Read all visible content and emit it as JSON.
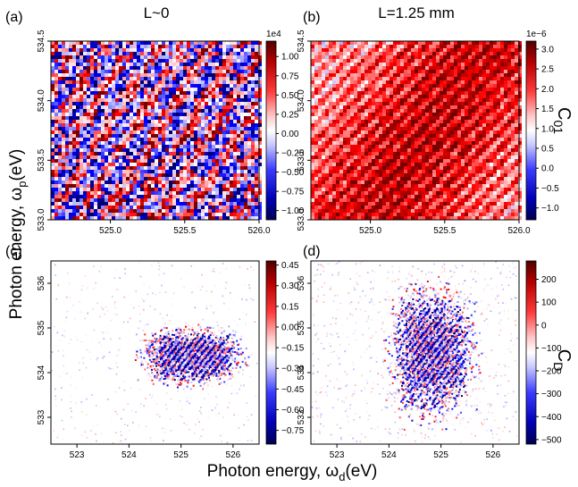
{
  "figure": {
    "ylabel": "Photon energy,  ω",
    "ylabel_sub": "p",
    "ylabel_unit": "(eV)",
    "xlabel": "Photon energy,  ω",
    "xlabel_sub": "d",
    "xlabel_unit": "(eV)",
    "colorbar_top_label": "C",
    "colorbar_top_sub": "01",
    "colorbar_bottom_label": "C",
    "colorbar_bottom_sub": "D"
  },
  "chart_data": [
    {
      "panel": "(a)",
      "title": "L~0",
      "type": "heatmap",
      "pattern": "speckle-noise",
      "xlim": [
        524.6,
        526.0
      ],
      "ylim": [
        533.0,
        534.5
      ],
      "xticks": [
        "525.0",
        "525.5",
        "526.0"
      ],
      "xtick_values": [
        525.0,
        525.5,
        526.0
      ],
      "yticks": [
        "533.0",
        "533.5",
        "534.0",
        "534.5"
      ],
      "ytick_values": [
        533.0,
        533.5,
        534.0,
        534.5
      ],
      "colorbar": {
        "exponent": "1e4",
        "ticks": [
          "1.00",
          "0.75",
          "0.50",
          "0.25",
          "0.00",
          "−0.25",
          "−0.50",
          "−0.75",
          "−1.00"
        ],
        "tick_values": [
          1.0,
          0.75,
          0.5,
          0.25,
          0.0,
          -0.25,
          -0.5,
          -0.75,
          -1.0
        ],
        "range": [
          -1.12,
          1.2
        ],
        "cmap": "seismic"
      }
    },
    {
      "panel": "(b)",
      "title": "L=1.25 mm",
      "type": "heatmap",
      "pattern": "positive-diagonal-fringes",
      "xlim": [
        524.6,
        526.0
      ],
      "ylim": [
        533.0,
        534.5
      ],
      "xticks": [
        "525.0",
        "525.5",
        "526.0"
      ],
      "xtick_values": [
        525.0,
        525.5,
        526.0
      ],
      "yticks": [
        "533.0",
        "533.5",
        "534.0",
        "534.5"
      ],
      "ytick_values": [
        533.0,
        533.5,
        534.0,
        534.5
      ],
      "colorbar": {
        "exponent": "1e−6",
        "ticks": [
          "3.0",
          "2.5",
          "2.0",
          "1.5",
          "1.0",
          "0.5",
          "0.0",
          "−0.5",
          "−1.0"
        ],
        "tick_values": [
          3.0,
          2.5,
          2.0,
          1.5,
          1.0,
          0.5,
          0.0,
          -0.5,
          -1.0
        ],
        "range": [
          -1.3,
          3.2
        ],
        "cmap": "seismic"
      }
    },
    {
      "panel": "(c)",
      "title": "",
      "type": "heatmap",
      "pattern": "sparse-elliptical-blob",
      "xlim": [
        522.5,
        526.5
      ],
      "ylim": [
        532.4,
        536.5
      ],
      "xticks": [
        "523",
        "524",
        "525",
        "526"
      ],
      "xtick_values": [
        523,
        524,
        525,
        526
      ],
      "yticks": [
        "533",
        "534",
        "535",
        "536"
      ],
      "ytick_values": [
        533,
        534,
        535,
        536
      ],
      "colorbar": {
        "exponent": "",
        "ticks": [
          "0.45",
          "0.30",
          "0.15",
          "0.00",
          "−0.15",
          "−0.30",
          "−0.45",
          "−0.60",
          "−0.75"
        ],
        "tick_values": [
          0.45,
          0.3,
          0.15,
          0.0,
          -0.15,
          -0.3,
          -0.45,
          -0.6,
          -0.75
        ],
        "range": [
          -0.85,
          0.48
        ],
        "cmap": "seismic"
      }
    },
    {
      "panel": "(d)",
      "title": "",
      "type": "heatmap",
      "pattern": "sparse-elongated-blob",
      "xlim": [
        522.5,
        526.5
      ],
      "ylim": [
        532.4,
        536.5
      ],
      "xticks": [
        "523",
        "524",
        "525",
        "526"
      ],
      "xtick_values": [
        523,
        524,
        525,
        526
      ],
      "yticks": [
        "533",
        "534",
        "535",
        "536"
      ],
      "ytick_values": [
        533,
        534,
        535,
        536
      ],
      "colorbar": {
        "exponent": "",
        "ticks": [
          "200",
          "100",
          "0",
          "−100",
          "−200",
          "−300",
          "−400",
          "−500"
        ],
        "tick_values": [
          200,
          100,
          0,
          -100,
          -200,
          -300,
          -400,
          -500
        ],
        "range": [
          -520,
          280
        ],
        "cmap": "seismic"
      }
    }
  ]
}
